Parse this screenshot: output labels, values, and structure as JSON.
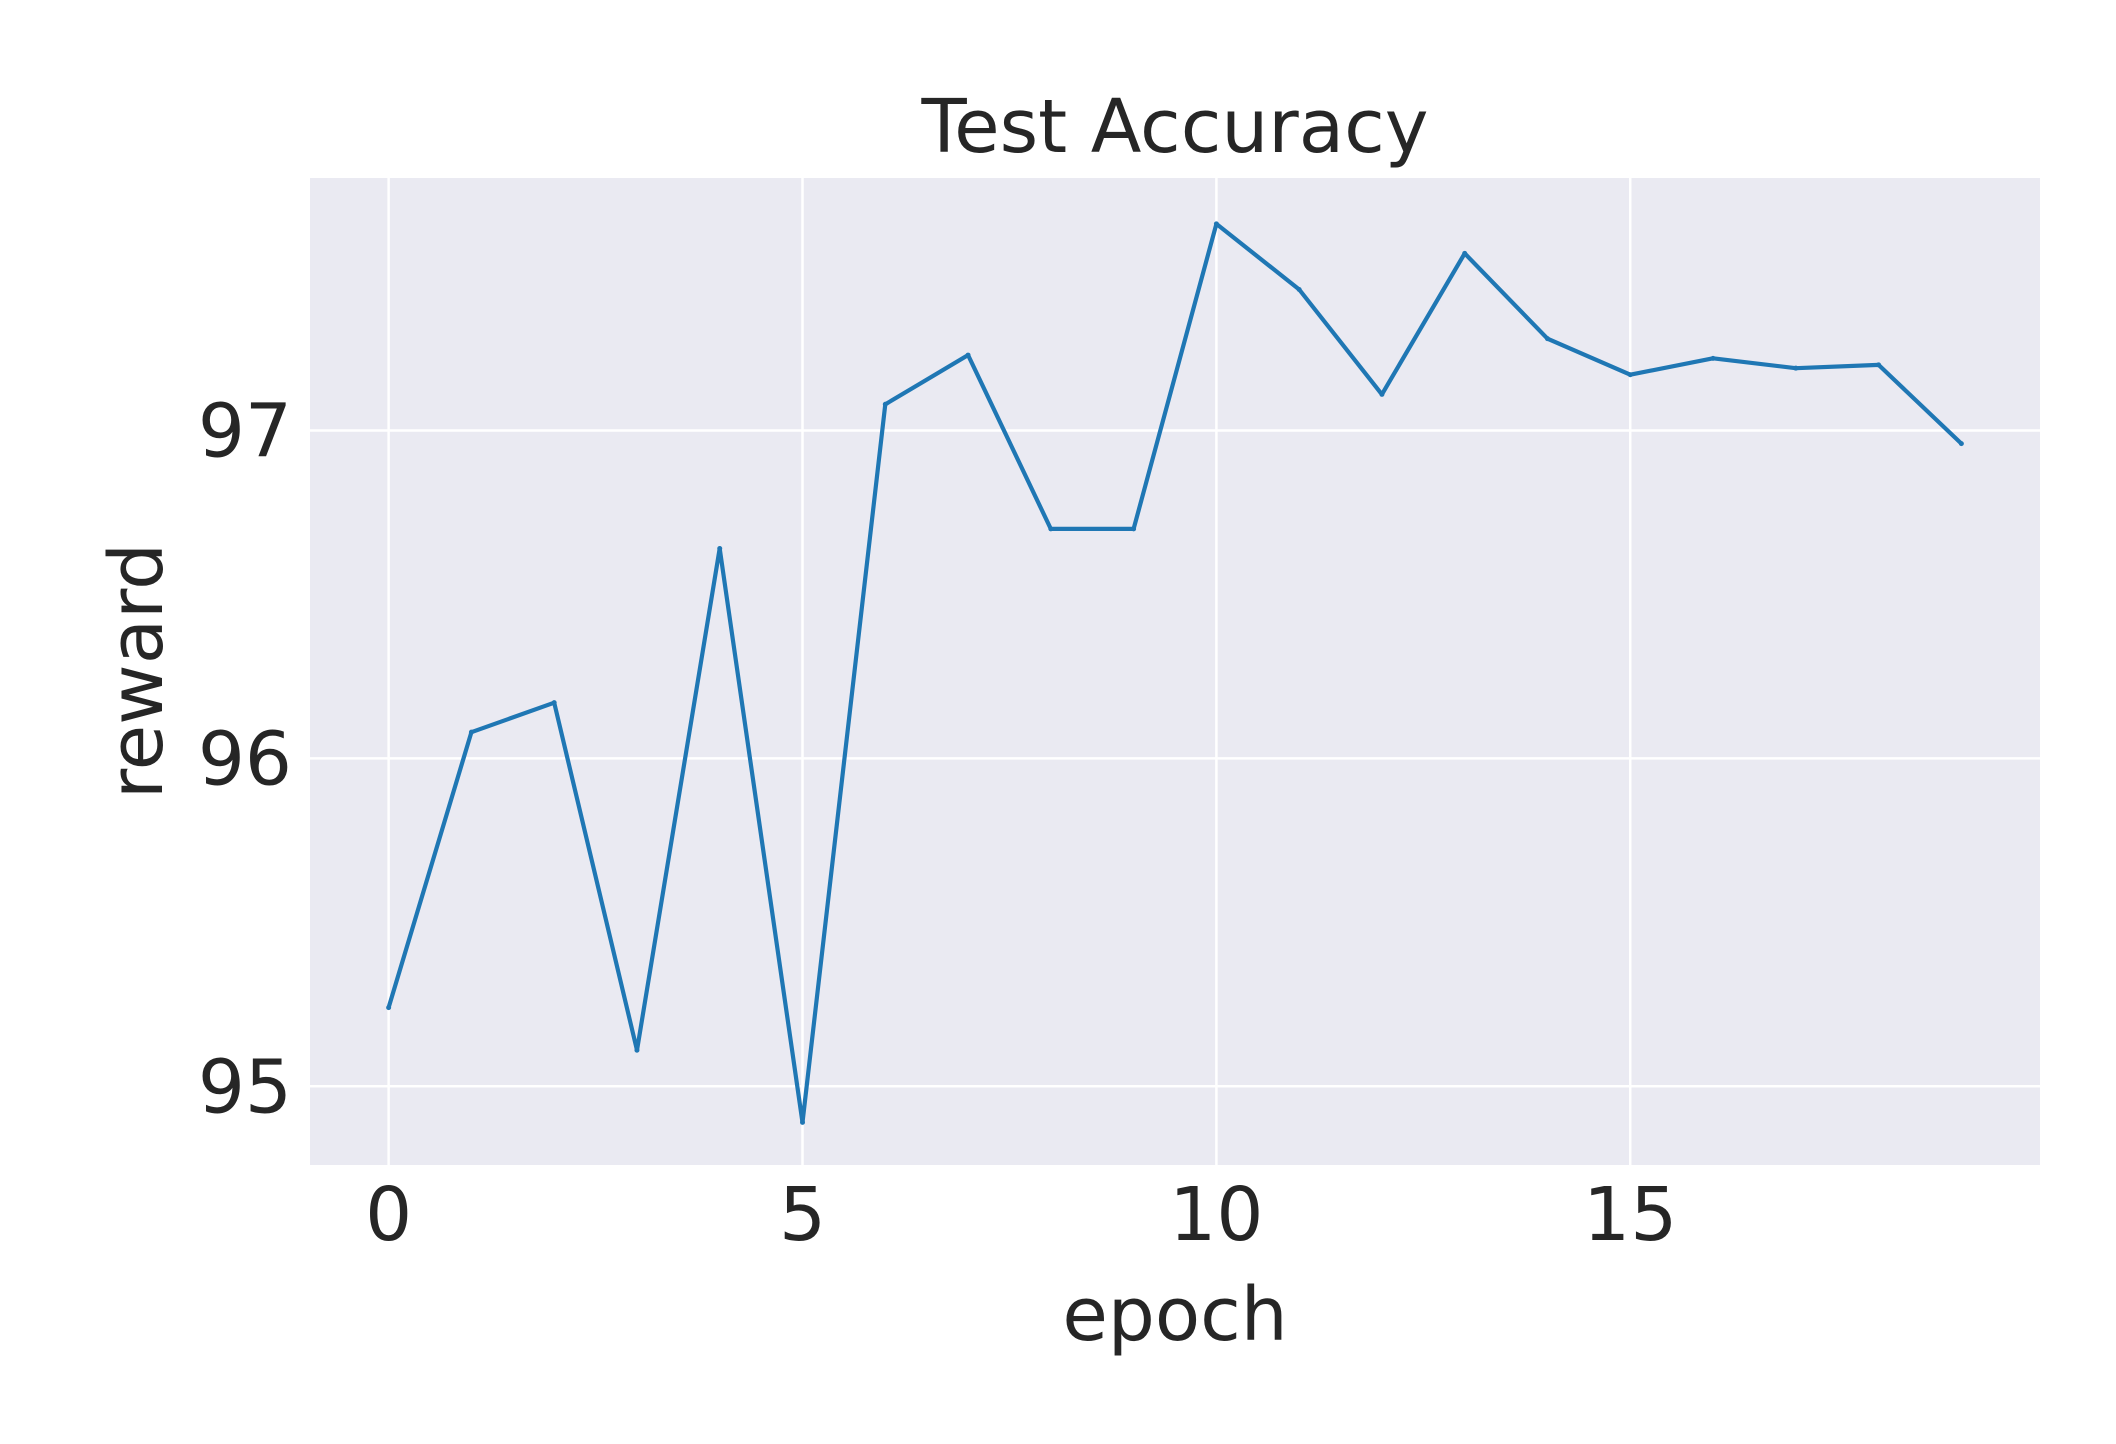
{
  "chart_data": {
    "type": "line",
    "title": "Test Accuracy",
    "xlabel": "epoch",
    "ylabel": "reward",
    "xlim": [
      -0.95,
      19.95
    ],
    "ylim": [
      94.76,
      97.77
    ],
    "xticks": [
      0,
      5,
      10,
      15
    ],
    "yticks": [
      95,
      96,
      97
    ],
    "grid": true,
    "legend": "none",
    "series": [
      {
        "color": "#1f77b4",
        "x": [
          0,
          1,
          2,
          3,
          4,
          5,
          6,
          7,
          8,
          9,
          10,
          11,
          12,
          13,
          14,
          15,
          16,
          17,
          18,
          19
        ],
        "y": [
          95.24,
          96.08,
          96.17,
          95.11,
          96.64,
          94.89,
          97.08,
          97.23,
          96.7,
          96.7,
          97.63,
          97.43,
          97.11,
          97.54,
          97.28,
          97.17,
          97.22,
          97.19,
          97.2,
          96.96
        ]
      }
    ]
  },
  "style": {
    "plot_background": "#eaeaf2",
    "grid_color": "#ffffff",
    "text_color": "#262626"
  }
}
